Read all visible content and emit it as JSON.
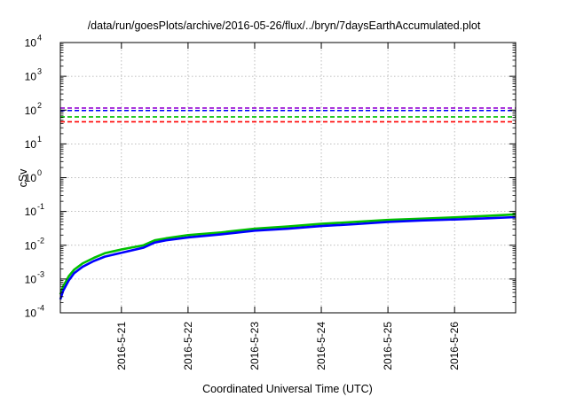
{
  "chart_data": {
    "type": "line",
    "title": "/data/run/goesPlots/archive/2016-05-26/flux/../bryn/7daysEarthAccumulated.plot",
    "xlabel": "Coordinated Universal Time (UTC)",
    "ylabel": "cSv",
    "yscale": "log",
    "ylim": [
      0.0001,
      10000
    ],
    "xlim": [
      "2016-05-20T02:00",
      "2016-05-26T22:00"
    ],
    "grid": true,
    "legend": "none",
    "y_ticks": [
      {
        "value": 0.0001,
        "mantissa": "10",
        "exponent": "-4"
      },
      {
        "value": 0.001,
        "mantissa": "10",
        "exponent": "-3"
      },
      {
        "value": 0.01,
        "mantissa": "10",
        "exponent": "-2"
      },
      {
        "value": 0.1,
        "mantissa": "10",
        "exponent": "-1"
      },
      {
        "value": 1,
        "mantissa": "10",
        "exponent": "0"
      },
      {
        "value": 10,
        "mantissa": "10",
        "exponent": "1"
      },
      {
        "value": 100,
        "mantissa": "10",
        "exponent": "2"
      },
      {
        "value": 1000,
        "mantissa": "10",
        "exponent": "3"
      },
      {
        "value": 10000,
        "mantissa": "10",
        "exponent": "4"
      }
    ],
    "x_ticks": [
      "2016-5-21",
      "2016-5-22",
      "2016-5-23",
      "2016-5-24",
      "2016-5-25",
      "2016-5-26"
    ],
    "thresholds": [
      {
        "value": 115,
        "color": "#9400d3"
      },
      {
        "value": 97,
        "color": "#0000ff"
      },
      {
        "value": 63,
        "color": "#00c000"
      },
      {
        "value": 45,
        "color": "#ff0000"
      }
    ],
    "series": [
      {
        "color": "#00c000",
        "x": [
          "2016-05-20T02:00",
          "2016-05-20T03:00",
          "2016-05-20T05:00",
          "2016-05-20T07:00",
          "2016-05-20T10:00",
          "2016-05-20T14:00",
          "2016-05-20T18:00",
          "2016-05-21T00:00",
          "2016-05-21T08:00",
          "2016-05-21T12:00",
          "2016-05-21T16:00",
          "2016-05-22T00:00",
          "2016-05-22T12:00",
          "2016-05-23T00:00",
          "2016-05-23T12:00",
          "2016-05-24T00:00",
          "2016-05-24T12:00",
          "2016-05-25T00:00",
          "2016-05-25T12:00",
          "2016-05-26T00:00",
          "2016-05-26T12:00",
          "2016-05-26T22:00"
        ],
        "y": [
          0.00035,
          0.0006,
          0.0012,
          0.0019,
          0.0029,
          0.0042,
          0.0058,
          0.0075,
          0.01,
          0.014,
          0.016,
          0.02,
          0.024,
          0.031,
          0.036,
          0.043,
          0.049,
          0.056,
          0.061,
          0.067,
          0.074,
          0.082
        ]
      },
      {
        "color": "#0000ff",
        "x": [
          "2016-05-20T02:00",
          "2016-05-20T03:00",
          "2016-05-20T05:00",
          "2016-05-20T07:00",
          "2016-05-20T10:00",
          "2016-05-20T14:00",
          "2016-05-20T18:00",
          "2016-05-21T00:00",
          "2016-05-21T08:00",
          "2016-05-21T12:00",
          "2016-05-21T16:00",
          "2016-05-22T00:00",
          "2016-05-22T12:00",
          "2016-05-23T00:00",
          "2016-05-23T12:00",
          "2016-05-24T00:00",
          "2016-05-24T12:00",
          "2016-05-25T00:00",
          "2016-05-25T12:00",
          "2016-05-26T00:00",
          "2016-05-26T12:00",
          "2016-05-26T22:00"
        ],
        "y": [
          0.00025,
          0.00045,
          0.0009,
          0.0015,
          0.0023,
          0.0034,
          0.0046,
          0.006,
          0.0085,
          0.012,
          0.014,
          0.017,
          0.021,
          0.027,
          0.031,
          0.037,
          0.042,
          0.049,
          0.054,
          0.058,
          0.063,
          0.068
        ]
      }
    ]
  }
}
